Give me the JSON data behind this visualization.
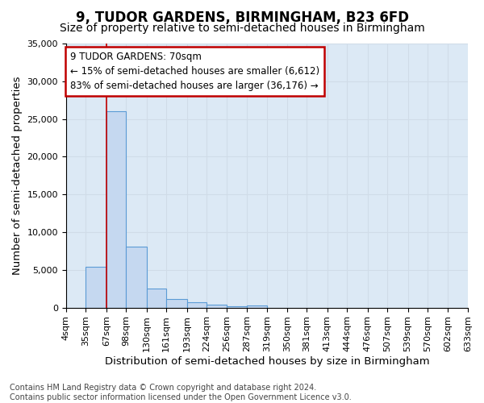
{
  "title": "9, TUDOR GARDENS, BIRMINGHAM, B23 6FD",
  "subtitle": "Size of property relative to semi-detached houses in Birmingham",
  "xlabel": "Distribution of semi-detached houses by size in Birmingham",
  "ylabel": "Number of semi-detached properties",
  "annotation_line1": "9 TUDOR GARDENS: 70sqm",
  "annotation_line2": "← 15% of semi-detached houses are smaller (6,612)",
  "annotation_line3": "83% of semi-detached houses are larger (36,176) →",
  "footer_line1": "Contains HM Land Registry data © Crown copyright and database right 2024.",
  "footer_line2": "Contains public sector information licensed under the Open Government Licence v3.0.",
  "bin_edges": [
    4,
    35,
    67,
    98,
    130,
    161,
    193,
    224,
    256,
    287,
    319,
    350,
    381,
    413,
    444,
    476,
    507,
    539,
    570,
    602,
    633
  ],
  "bin_counts": [
    0,
    5400,
    26000,
    8100,
    2500,
    1100,
    700,
    350,
    200,
    300,
    0,
    0,
    0,
    0,
    0,
    0,
    0,
    0,
    0,
    0
  ],
  "bar_color": "#c5d8f0",
  "bar_edge_color": "#5b9bd5",
  "vline_color": "#c00000",
  "vline_x": 67,
  "annotation_box_color": "#ffffff",
  "annotation_box_edge_color": "#c00000",
  "grid_color": "#d0dce8",
  "bg_color": "#dce9f5",
  "ylim": [
    0,
    35000
  ],
  "yticks": [
    0,
    5000,
    10000,
    15000,
    20000,
    25000,
    30000,
    35000
  ],
  "title_fontsize": 12,
  "subtitle_fontsize": 10,
  "axis_label_fontsize": 9.5,
  "tick_fontsize": 8,
  "annotation_fontsize": 8.5,
  "footer_fontsize": 7
}
